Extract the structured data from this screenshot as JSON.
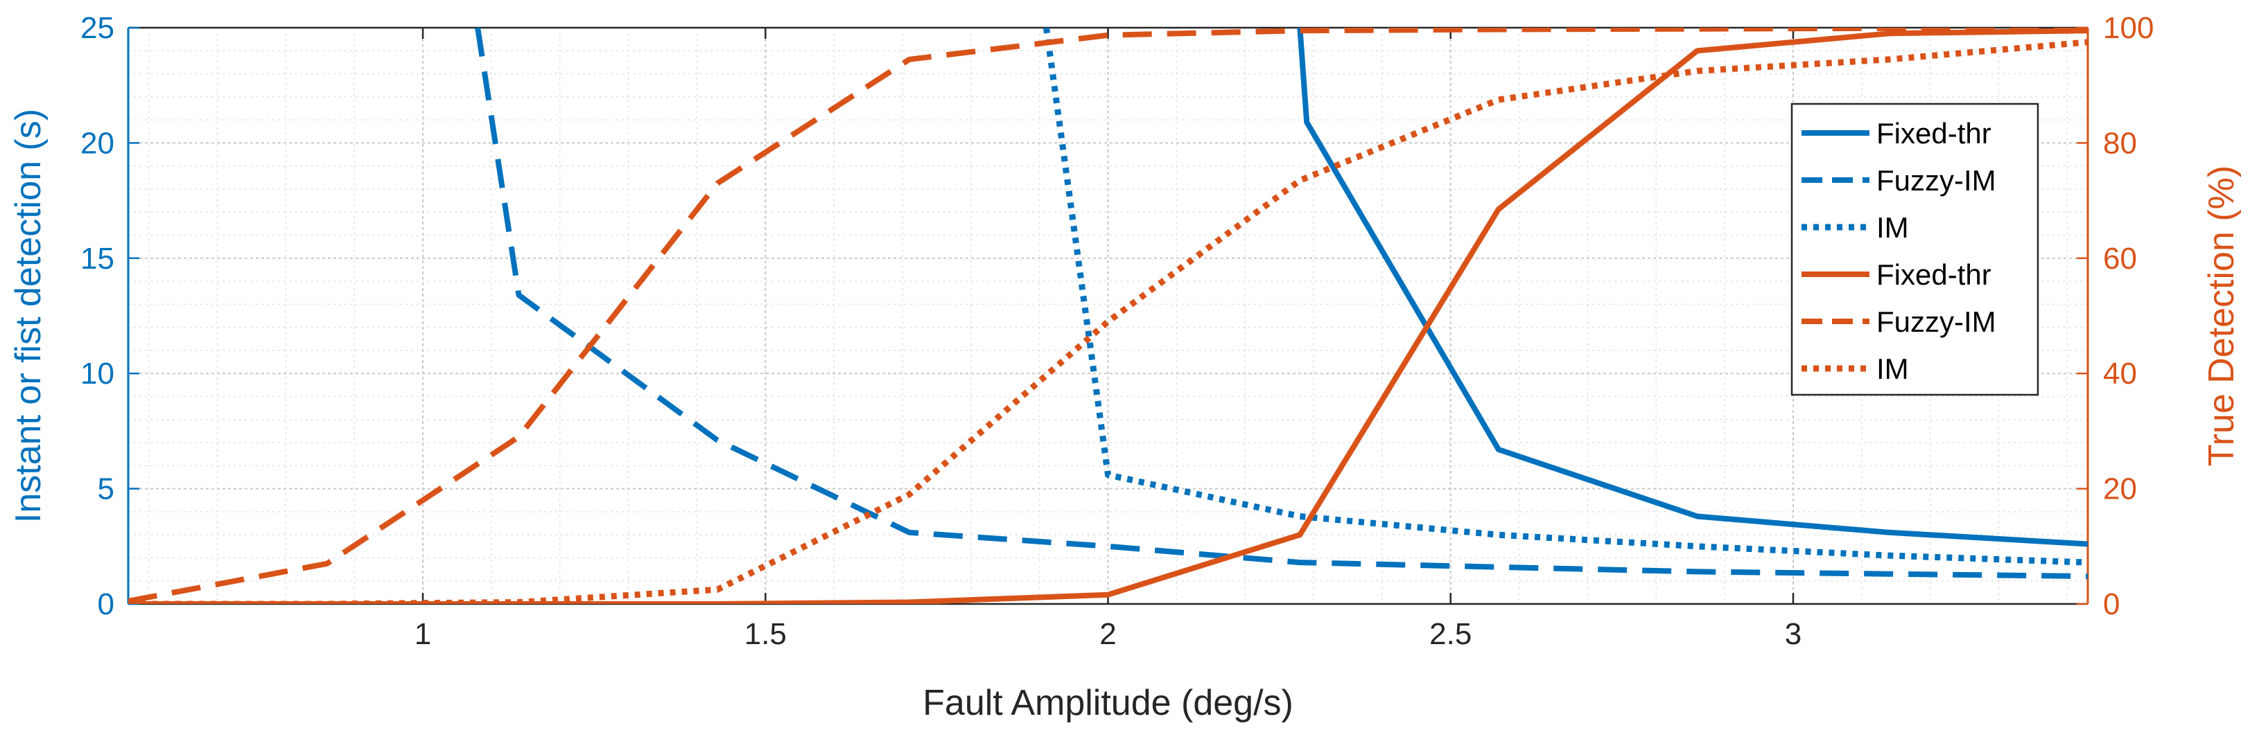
{
  "chart_data": {
    "type": "line",
    "xlabel": "Fault Amplitude (deg/s)",
    "ylabel_left": "Instant or fist detection (s)",
    "ylabel_right": "True Detection (%)",
    "xlim": [
      0.57,
      3.43
    ],
    "ylim_left": [
      0,
      25
    ],
    "ylim_right": [
      0,
      100
    ],
    "x_ticks": [
      1,
      1.5,
      2,
      2.5,
      3
    ],
    "x_tick_labels": [
      "1",
      "1.5",
      "2",
      "2.5",
      "3"
    ],
    "y_left_ticks": [
      0,
      5,
      10,
      15,
      20,
      25
    ],
    "y_left_tick_labels": [
      "0",
      "5",
      "10",
      "15",
      "20",
      "25"
    ],
    "y_right_ticks": [
      0,
      20,
      40,
      60,
      80,
      100
    ],
    "y_right_tick_labels": [
      "0",
      "20",
      "40",
      "60",
      "80",
      "100"
    ],
    "grid": true,
    "minor_grid": true,
    "legend_position": "right",
    "colors": {
      "left_axis": "#0072BD",
      "right_axis": "#D95319",
      "grid": "#c8c8c8",
      "minor_grid": "#e2e2e2"
    },
    "series": [
      {
        "name": "Fixed-thr",
        "axis": "left",
        "style": "solid",
        "color": "#0072BD",
        "x": [
          2.28,
          2.29,
          2.57,
          2.86,
          3.14,
          3.43
        ],
        "y": [
          25,
          20.9,
          6.7,
          3.8,
          3.1,
          2.6
        ]
      },
      {
        "name": "Fuzzy-IM",
        "axis": "left",
        "style": "dashed",
        "color": "#0072BD",
        "x": [
          1.08,
          1.14,
          1.43,
          1.71,
          2.0,
          2.28,
          2.57,
          2.86,
          3.14,
          3.43
        ],
        "y": [
          25,
          13.4,
          7.1,
          3.1,
          2.5,
          1.8,
          1.6,
          1.4,
          1.3,
          1.2
        ]
      },
      {
        "name": "IM",
        "axis": "left",
        "style": "dotted",
        "color": "#0072BD",
        "x": [
          1.91,
          2.0,
          2.28,
          2.57,
          2.86,
          3.14,
          3.43
        ],
        "y": [
          25,
          5.6,
          3.8,
          3.0,
          2.5,
          2.1,
          1.8
        ]
      },
      {
        "name": "Fixed-thr",
        "axis": "right",
        "style": "solid",
        "color": "#D95319",
        "x": [
          0.57,
          0.86,
          1.14,
          1.43,
          1.71,
          2.0,
          2.28,
          2.57,
          2.86,
          3.14,
          3.43
        ],
        "y": [
          0,
          0,
          0,
          0,
          0.3,
          1.6,
          12,
          68.5,
          96,
          99,
          99.5
        ]
      },
      {
        "name": "Fuzzy-IM",
        "axis": "right",
        "style": "dashed",
        "color": "#D95319",
        "x": [
          0.57,
          0.86,
          1.14,
          1.43,
          1.71,
          2.0,
          2.28,
          2.57,
          2.86,
          3.14,
          3.43
        ],
        "y": [
          0.5,
          7,
          29,
          73,
          94.5,
          98.7,
          99.5,
          99.7,
          99.8,
          99.9,
          100
        ]
      },
      {
        "name": "IM",
        "axis": "right",
        "style": "dotted",
        "color": "#D95319",
        "x": [
          0.57,
          0.86,
          1.14,
          1.43,
          1.71,
          2.0,
          2.28,
          2.57,
          2.86,
          3.14,
          3.43
        ],
        "y": [
          0,
          0,
          0.3,
          2.5,
          19,
          49,
          73.5,
          87.5,
          92.5,
          94.5,
          97.5
        ]
      }
    ]
  }
}
